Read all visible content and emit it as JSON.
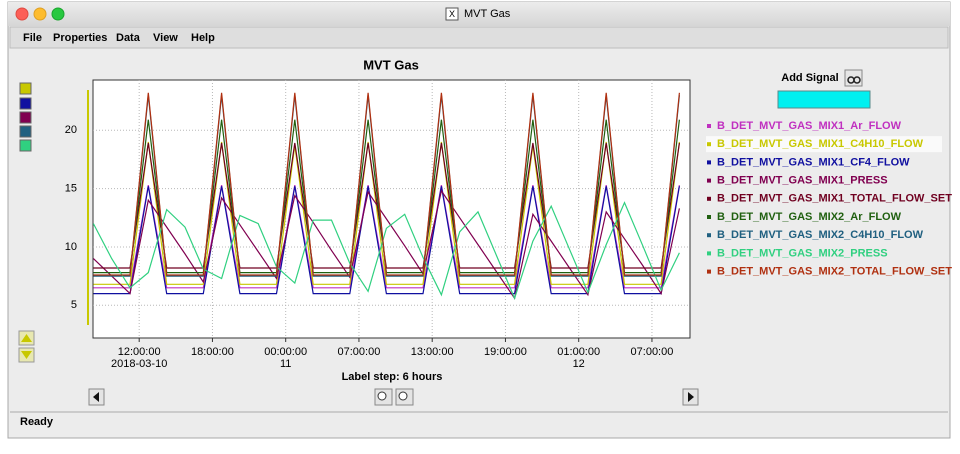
{
  "window": {
    "title": "MVT Gas",
    "menu": [
      "File",
      "Properties",
      "Data",
      "View",
      "Help"
    ],
    "add_signal": "Add Signal",
    "label_step": "Label step: 6 hours",
    "status": "Ready"
  },
  "chart_data": {
    "type": "line",
    "title": "MVT Gas",
    "x": [
      "2018-03-10T08:15:00-05:00",
      "2018-03-10T09:45:00-05:00",
      "2018-03-10T11:15:00-05:00",
      "2018-03-10T12:45:00-05:00",
      "2018-03-10T14:15:00-05:00",
      "2018-03-10T15:45:00-05:00",
      "2018-03-10T17:15:00-05:00",
      "2018-03-10T18:45:00-05:00",
      "2018-03-10T20:15:00-05:00",
      "2018-03-10T21:45:00-05:00",
      "2018-03-10T23:15:00-05:00",
      "2018-03-11T00:45:00-05:00",
      "2018-03-11T03:15:00-04:00",
      "2018-03-11T04:45:00-04:00",
      "2018-03-11T06:15:00-04:00",
      "2018-03-11T07:45:00-04:00",
      "2018-03-11T09:15:00-04:00",
      "2018-03-11T10:45:00-04:00",
      "2018-03-11T12:15:00-04:00",
      "2018-03-11T13:45:00-04:00",
      "2018-03-11T15:15:00-04:00",
      "2018-03-11T16:45:00-04:00",
      "2018-03-11T18:15:00-04:00",
      "2018-03-11T19:45:00-04:00",
      "2018-03-11T21:15:00-04:00",
      "2018-03-11T22:45:00-04:00",
      "2018-03-12T00:15:00-04:00",
      "2018-03-12T01:45:00-04:00",
      "2018-03-12T03:15:00-04:00",
      "2018-03-12T04:45:00-04:00",
      "2018-03-12T06:15:00-04:00",
      "2018-03-12T07:45:00-04:00",
      "2018-03-12T09:15:00-04:00"
    ],
    "xlim": [
      "2018-03-10T08:13:00-05:00",
      "2018-03-12T10:07:00-04:00"
    ],
    "xticks": [
      {
        "value": "2018-03-10T12:00:00-05:00",
        "label": "12:00:00",
        "date_label": "2018-03-10"
      },
      {
        "value": "2018-03-10T18:00:00-05:00",
        "label": "18:00:00"
      },
      {
        "value": "2018-03-11T00:00:00-05:00",
        "label": "00:00:00",
        "date_label": "11"
      },
      {
        "value": "2018-03-11T07:00:00-04:00",
        "label": "07:00:00"
      },
      {
        "value": "2018-03-11T13:00:00-04:00",
        "label": "13:00:00"
      },
      {
        "value": "2018-03-11T19:00:00-04:00",
        "label": "19:00:00"
      },
      {
        "value": "2018-03-12T01:00:00-04:00",
        "label": "01:00:00",
        "date_label": "12"
      },
      {
        "value": "2018-03-12T07:00:00-04:00",
        "label": "07:00:00"
      }
    ],
    "ylim": [
      2.2,
      24.3
    ],
    "yticks": [
      5,
      10,
      15,
      20
    ],
    "grid": true,
    "series": [
      {
        "name": "B_DET_MVT_GAS_MIX1_Ar_FLOW",
        "color": "#c030c0",
        "values": [
          6.5,
          6.5,
          6.5,
          15.3,
          6.5,
          6.5,
          6.5,
          15.3,
          6.5,
          6.5,
          6.5,
          15.3,
          6.5,
          6.5,
          6.5,
          15.3,
          6.5,
          6.5,
          6.5,
          15.3,
          6.5,
          6.5,
          6.5,
          6.5,
          15.3,
          6.5,
          6.5,
          6.5,
          15.3,
          6.5,
          6.5,
          6.5,
          15.3
        ]
      },
      {
        "name": "B_DET_MVT_GAS_MIX1_C4H10_FLOW",
        "color": "#c8c800",
        "values": [
          6.8,
          6.8,
          6.8,
          19,
          6.8,
          6.8,
          6.8,
          19,
          6.8,
          6.8,
          6.8,
          18.7,
          6.8,
          6.8,
          6.8,
          19,
          6.8,
          6.8,
          6.8,
          19,
          6.8,
          6.8,
          6.8,
          6.8,
          18.7,
          6.8,
          6.8,
          6.8,
          19,
          6.8,
          6.8,
          6.8,
          19
        ]
      },
      {
        "name": "B_DET_MVT_GAS_MIX1_CF4_FLOW",
        "color": "#1010a0",
        "values": [
          6,
          6,
          6,
          15.2,
          6,
          6,
          6,
          15.2,
          6,
          6,
          6,
          15.2,
          6,
          6,
          6,
          15.2,
          6,
          6,
          6,
          15.2,
          6,
          6,
          6,
          6,
          15.2,
          6,
          6,
          6,
          15.2,
          6,
          6,
          6,
          15.2
        ]
      },
      {
        "name": "B_DET_MVT_GAS_MIX1_PRESS",
        "color": "#800050",
        "values": [
          9,
          7.5,
          6,
          14,
          11.7,
          9.4,
          7,
          14.2,
          11.9,
          9.6,
          7.3,
          14.4,
          12.1,
          9.7,
          7.4,
          14.7,
          12.4,
          10.1,
          7.7,
          14.8,
          12.5,
          10.2,
          7.9,
          5.6,
          12.8,
          10.5,
          8.2,
          5.9,
          13,
          10.7,
          8.4,
          6,
          13.3
        ]
      },
      {
        "name": "B_DET_MVT_GAS_MIX1_TOTAL_FLOW_SET",
        "color": "#700020",
        "values": [
          8.2,
          8.2,
          8.2,
          18.9,
          8.2,
          8.2,
          8.2,
          18.9,
          8.2,
          8.2,
          8.2,
          18.9,
          8.2,
          8.2,
          8.2,
          18.9,
          8.2,
          8.2,
          8.2,
          18.9,
          8.2,
          8.2,
          8.2,
          8.2,
          18.9,
          8.2,
          8.2,
          8.2,
          18.9,
          8.2,
          8.2,
          8.2,
          18.9
        ]
      },
      {
        "name": "B_DET_MVT_GAS_MIX2_Ar_FLOW",
        "color": "#206010",
        "values": [
          7.8,
          7.8,
          7.8,
          20.9,
          7.8,
          7.8,
          7.8,
          20.9,
          7.8,
          7.8,
          7.8,
          20.9,
          7.8,
          7.8,
          7.8,
          20.9,
          7.8,
          7.8,
          7.8,
          20.9,
          7.8,
          7.8,
          7.8,
          7.8,
          20.9,
          7.8,
          7.8,
          7.8,
          20.9,
          7.8,
          7.8,
          7.8,
          20.9
        ]
      },
      {
        "name": "B_DET_MVT_GAS_MIX2_C4H10_FLOW",
        "color": "#206080",
        "values": [
          7.5,
          7.5,
          7.5,
          23,
          7.5,
          7.5,
          7.5,
          23,
          7.5,
          7.5,
          7.5,
          23,
          7.5,
          7.5,
          7.5,
          23,
          7.5,
          7.5,
          7.5,
          23,
          7.5,
          7.5,
          7.5,
          7.5,
          23,
          7.5,
          7.5,
          7.5,
          23,
          7.5,
          7.5,
          7.5,
          23
        ]
      },
      {
        "name": "B_DET_MVT_GAS_MIX2_PRESS",
        "color": "#30d080",
        "values": [
          12,
          9,
          6.5,
          7.8,
          13.2,
          11.7,
          8.1,
          7.3,
          12.7,
          12,
          8.3,
          6.9,
          12.3,
          12.3,
          8.6,
          6.2,
          11.6,
          12.8,
          9.1,
          5.9,
          11.3,
          13,
          9.3,
          5.6,
          10.5,
          13.5,
          9.8,
          6.1,
          10.2,
          13.8,
          10.1,
          6.3,
          9.5
        ]
      },
      {
        "name": "B_DET_MVT_GAS_MIX2_TOTAL_FLOW_SET",
        "color": "#b03010",
        "values": [
          7.6,
          7.6,
          7.6,
          23.2,
          7.6,
          7.6,
          7.6,
          23.2,
          7.6,
          7.6,
          7.6,
          23.2,
          7.6,
          7.6,
          7.6,
          23.2,
          7.6,
          7.6,
          7.6,
          23.2,
          7.6,
          7.6,
          7.6,
          7.6,
          23.2,
          7.6,
          7.6,
          7.6,
          23.2,
          7.6,
          7.6,
          7.6,
          23.2
        ]
      }
    ]
  }
}
